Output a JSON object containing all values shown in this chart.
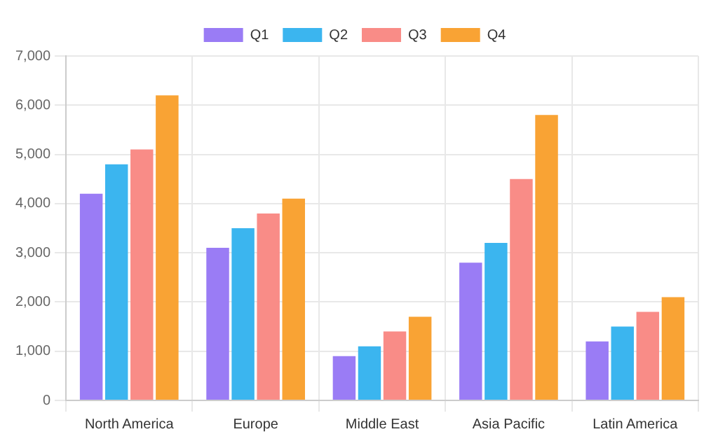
{
  "chart_data": {
    "type": "bar",
    "categories": [
      "North America",
      "Europe",
      "Middle East",
      "Asia Pacific",
      "Latin America"
    ],
    "series": [
      {
        "name": "Q1",
        "color": "#9a7cf5",
        "values": [
          4200,
          3100,
          900,
          2800,
          1200
        ]
      },
      {
        "name": "Q2",
        "color": "#3bb5ef",
        "values": [
          4800,
          3500,
          1100,
          3200,
          1500
        ]
      },
      {
        "name": "Q3",
        "color": "#f98c87",
        "values": [
          5100,
          3800,
          1400,
          4500,
          1800
        ]
      },
      {
        "name": "Q4",
        "color": "#f9a334",
        "values": [
          6200,
          4100,
          1700,
          5800,
          2100
        ]
      }
    ],
    "ylim": [
      0,
      7000
    ],
    "yticks": [
      {
        "value": 0,
        "label": "0"
      },
      {
        "value": 1000,
        "label": "1,000"
      },
      {
        "value": 2000,
        "label": "2,000"
      },
      {
        "value": 3000,
        "label": "3,000"
      },
      {
        "value": 4000,
        "label": "4,000"
      },
      {
        "value": 5000,
        "label": "5,000"
      },
      {
        "value": 6000,
        "label": "6,000"
      },
      {
        "value": 7000,
        "label": "7,000"
      }
    ],
    "grid": true,
    "legend": "top"
  }
}
